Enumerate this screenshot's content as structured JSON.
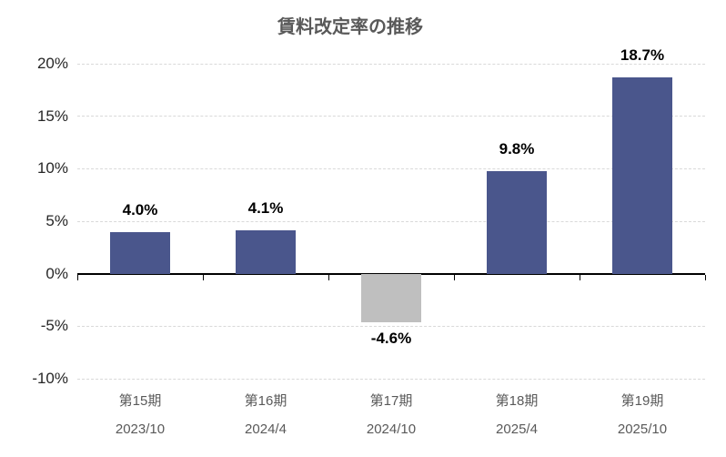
{
  "chart_data": {
    "type": "bar",
    "title": "賃料改定率の推移",
    "categories": [
      "第15期",
      "第16期",
      "第17期",
      "第18期",
      "第19期"
    ],
    "category_dates": [
      "2023/10",
      "2024/4",
      "2024/10",
      "2025/4",
      "2025/10"
    ],
    "values": [
      4.0,
      4.1,
      -4.6,
      9.8,
      18.7
    ],
    "value_labels": [
      "4.0%",
      "4.1%",
      "-4.6%",
      "9.8%",
      "18.7%"
    ],
    "ylim": [
      -10,
      20
    ],
    "ytick_values": [
      20,
      15,
      10,
      5,
      0,
      -5,
      -10
    ],
    "ytick_labels": [
      "20%",
      "15%",
      "10%",
      "5%",
      "0%",
      "-5%",
      "-10%"
    ],
    "grid": "horizontal-dashed",
    "legend": "none",
    "colors": {
      "positive_bar": "#4A568C",
      "negative_bar": "#BFBFBF",
      "gridline": "#D9D9D9",
      "zero_axis": "#000000",
      "title_text": "#595959",
      "y_tick_text": "#262626",
      "x_tick_text": "#595959",
      "value_label_text": "#000000"
    }
  }
}
